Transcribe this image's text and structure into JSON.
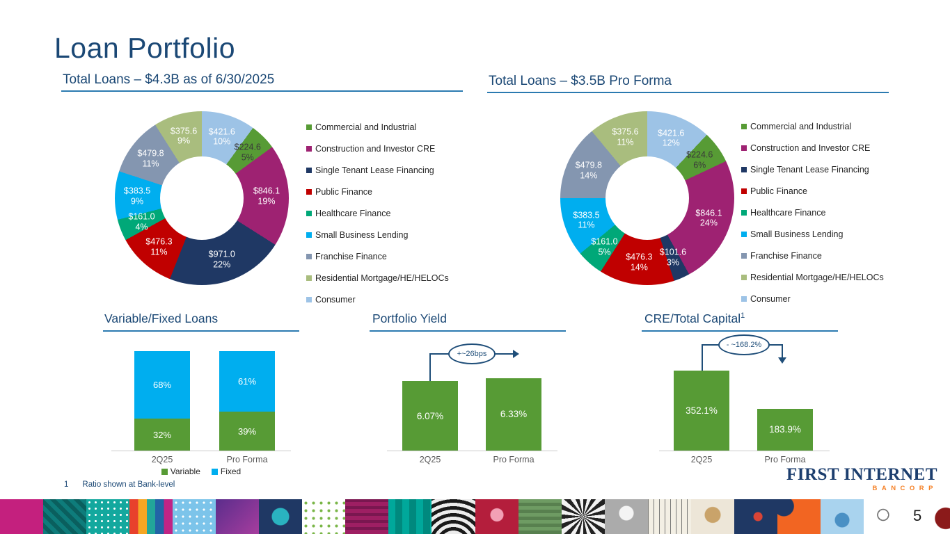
{
  "page": {
    "title": "Loan Portfolio",
    "slide_number": "5",
    "footnote_marker": "1",
    "footnote_text": "Ratio shown at Bank-level"
  },
  "logo": {
    "name": "First Internet Bancorp",
    "line1": "FIRST INTERNET",
    "line2": "BANCORP"
  },
  "colors": {
    "heading_blue": "#1B4875",
    "rule_blue": "#2B7AB0",
    "bar_green": "#579B35",
    "fixed_cyan": "#00AEEF",
    "annotation_blue": "#1F4E79",
    "axis_gray": "#595959"
  },
  "categories": [
    {
      "label": "Commercial and Industrial",
      "color": "#579B35"
    },
    {
      "label": "Construction and Investor CRE",
      "color": "#9E2272"
    },
    {
      "label": "Single Tenant Lease Financing",
      "color": "#1F3864"
    },
    {
      "label": "Public Finance",
      "color": "#C00000"
    },
    {
      "label": "Healthcare Finance",
      "color": "#00A878"
    },
    {
      "label": "Small Business Lending",
      "color": "#00AEEF"
    },
    {
      "label": "Franchise Finance",
      "color": "#8496B0"
    },
    {
      "label": "Residential Mortgage/HE/HELOCs",
      "color": "#A9BD7E"
    },
    {
      "label": "Consumer",
      "color": "#9DC3E6"
    }
  ],
  "chart_data": [
    {
      "type": "pie",
      "subtype": "donut",
      "title": "Total Loans – $4.3B as of 6/30/2025",
      "total": "$4.3B",
      "as_of": "6/30/2025",
      "legend_position": "right",
      "segments": [
        {
          "category": "Consumer",
          "value": 421.6,
          "pct": 10,
          "value_label": "$421.6",
          "pct_label": "10%"
        },
        {
          "category": "Commercial and Industrial",
          "value": 224.6,
          "pct": 5,
          "value_label": "$224.6",
          "pct_label": "5%",
          "dark_label": true
        },
        {
          "category": "Construction and Investor CRE",
          "value": 846.1,
          "pct": 19,
          "value_label": "$846.1",
          "pct_label": "19%"
        },
        {
          "category": "Single Tenant Lease Financing",
          "value": 971.0,
          "pct": 22,
          "value_label": "$971.0",
          "pct_label": "22%"
        },
        {
          "category": "Public Finance",
          "value": 476.3,
          "pct": 11,
          "value_label": "$476.3",
          "pct_label": "11%"
        },
        {
          "category": "Healthcare Finance",
          "value": 161.0,
          "pct": 4,
          "value_label": "$161.0",
          "pct_label": "4%"
        },
        {
          "category": "Small Business Lending",
          "value": 383.5,
          "pct": 9,
          "value_label": "$383.5",
          "pct_label": "9%"
        },
        {
          "category": "Franchise Finance",
          "value": 479.8,
          "pct": 11,
          "value_label": "$479.8",
          "pct_label": "11%"
        },
        {
          "category": "Residential Mortgage/HE/HELOCs",
          "value": 375.6,
          "pct": 9,
          "value_label": "$375.6",
          "pct_label": "9%"
        }
      ]
    },
    {
      "type": "pie",
      "subtype": "donut",
      "title": "Total Loans – $3.5B Pro Forma",
      "total": "$3.5B",
      "legend_position": "right",
      "segments": [
        {
          "category": "Consumer",
          "value": 421.6,
          "pct": 12,
          "value_label": "$421.6",
          "pct_label": "12%"
        },
        {
          "category": "Commercial and Industrial",
          "value": 224.6,
          "pct": 6,
          "value_label": "$224.6",
          "pct_label": "6%",
          "dark_label": true
        },
        {
          "category": "Construction and Investor CRE",
          "value": 846.1,
          "pct": 24,
          "value_label": "$846.1",
          "pct_label": "24%"
        },
        {
          "category": "Single Tenant Lease Financing",
          "value": 101.6,
          "pct": 3,
          "value_label": "$101.6",
          "pct_label": "3%"
        },
        {
          "category": "Public Finance",
          "value": 476.3,
          "pct": 14,
          "value_label": "$476.3",
          "pct_label": "14%"
        },
        {
          "category": "Healthcare Finance",
          "value": 161.0,
          "pct": 5,
          "value_label": "$161.0",
          "pct_label": "5%"
        },
        {
          "category": "Small Business Lending",
          "value": 383.5,
          "pct": 11,
          "value_label": "$383.5",
          "pct_label": "11%"
        },
        {
          "category": "Franchise Finance",
          "value": 479.8,
          "pct": 14,
          "value_label": "$479.8",
          "pct_label": "14%"
        },
        {
          "category": "Residential Mortgage/HE/HELOCs",
          "value": 375.6,
          "pct": 11,
          "value_label": "$375.6",
          "pct_label": "11%"
        }
      ]
    },
    {
      "type": "bar",
      "subtype": "stacked",
      "title": "Variable/Fixed Loans",
      "categories": [
        "2Q25",
        "Pro Forma"
      ],
      "series": [
        {
          "name": "Variable",
          "color": "#579B35",
          "values": [
            32,
            39
          ],
          "labels": [
            "32%",
            "39%"
          ]
        },
        {
          "name": "Fixed",
          "color": "#00AEEF",
          "values": [
            68,
            61
          ],
          "labels": [
            "68%",
            "61%"
          ]
        }
      ],
      "unit": "percent",
      "ylim": [
        0,
        100
      ]
    },
    {
      "type": "bar",
      "title": "Portfolio Yield",
      "color": "#579B35",
      "categories": [
        "2Q25",
        "Pro Forma"
      ],
      "values": [
        6.07,
        6.33
      ],
      "labels": [
        "6.07%",
        "6.33%"
      ],
      "annotation": "+~26bps"
    },
    {
      "type": "bar",
      "title": "CRE/Total Capital",
      "title_superscript": "1",
      "color": "#579B35",
      "categories": [
        "2Q25",
        "Pro Forma"
      ],
      "values": [
        352.1,
        183.9
      ],
      "labels": [
        "352.1%",
        "183.9%"
      ],
      "annotation": "- ~168.2%"
    }
  ]
}
